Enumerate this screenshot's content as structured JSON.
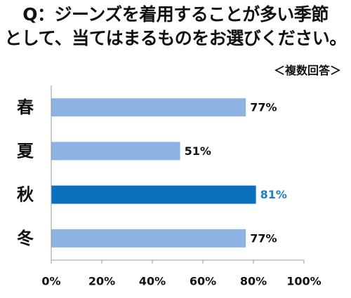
{
  "question": {
    "line1": "Q：ジーンズを着用することが多い季節",
    "line2": "として、当てはまるものをお選びください。"
  },
  "note": "＜複数回答＞",
  "colors": {
    "bar": "#8db3e2",
    "bar_highlight": "#0a6fbd",
    "highlight_text": "#1f7ec2",
    "axis": "#999999"
  },
  "chart_data": {
    "type": "bar",
    "orientation": "horizontal",
    "categories": [
      "春",
      "夏",
      "秋",
      "冬"
    ],
    "values": [
      77,
      51,
      81,
      77
    ],
    "value_labels": [
      "77%",
      "51%",
      "81%",
      "77%"
    ],
    "highlight_index": 2,
    "xlim": [
      0,
      100
    ],
    "xticks": [
      0,
      20,
      40,
      60,
      80,
      100
    ],
    "xtick_labels": [
      "0%",
      "20%",
      "40%",
      "60%",
      "80%",
      "100%"
    ],
    "grid": false
  }
}
